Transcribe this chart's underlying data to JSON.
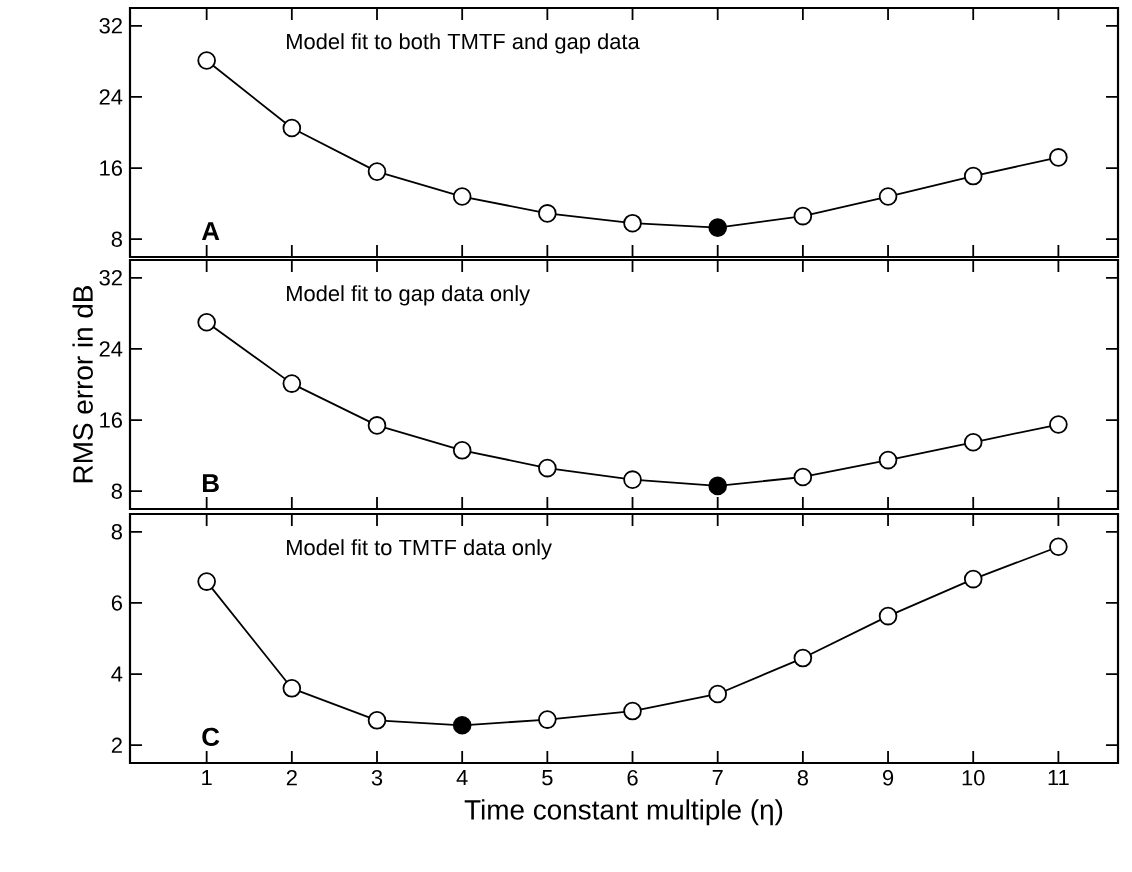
{
  "chart_data": [
    {
      "type": "line",
      "title": "Model fit to both TMTF and gap data",
      "annotations": [
        "A"
      ],
      "x": [
        1,
        2,
        3,
        4,
        5,
        6,
        7,
        8,
        9,
        10,
        11
      ],
      "series": [
        {
          "color": "#000000",
          "colors": [
            "#ffffff",
            "#ffffff",
            "#ffffff",
            "#ffffff",
            "#ffffff",
            "#ffffff",
            "#000000",
            "#ffffff",
            "#ffffff",
            "#ffffff",
            "#ffffff"
          ],
          "values": [
            28.1,
            20.5,
            15.6,
            12.8,
            10.9,
            9.8,
            9.3,
            10.6,
            12.8,
            15.1,
            17.2
          ]
        }
      ],
      "xlim": [
        0.1,
        11.7
      ],
      "ylim": [
        6,
        34
      ],
      "xticks": [
        1,
        2,
        3,
        4,
        5,
        6,
        7,
        8,
        9,
        10,
        11
      ],
      "yticks": [
        8,
        16,
        24,
        32
      ],
      "tick_labels": "y",
      "marker": "circle",
      "line_style": "solid"
    },
    {
      "type": "line",
      "title": "Model fit to gap data only",
      "annotations": [
        "B"
      ],
      "ylabel": "RMS error in dB",
      "x": [
        1,
        2,
        3,
        4,
        5,
        6,
        7,
        8,
        9,
        10,
        11
      ],
      "series": [
        {
          "color": "#000000",
          "colors": [
            "#ffffff",
            "#ffffff",
            "#ffffff",
            "#ffffff",
            "#ffffff",
            "#ffffff",
            "#000000",
            "#ffffff",
            "#ffffff",
            "#ffffff",
            "#ffffff"
          ],
          "values": [
            27.0,
            20.1,
            15.4,
            12.6,
            10.6,
            9.3,
            8.6,
            9.6,
            11.5,
            13.5,
            15.5
          ]
        }
      ],
      "xlim": [
        0.1,
        11.7
      ],
      "ylim": [
        6,
        34
      ],
      "xticks": [
        1,
        2,
        3,
        4,
        5,
        6,
        7,
        8,
        9,
        10,
        11
      ],
      "yticks": [
        8,
        16,
        24,
        32
      ],
      "tick_labels": "y",
      "marker": "circle",
      "line_style": "solid"
    },
    {
      "type": "line",
      "title": "Model fit to TMTF data only",
      "annotations": [
        "C"
      ],
      "xlabel": "Time constant multiple (η)",
      "x": [
        1,
        2,
        3,
        4,
        5,
        6,
        7,
        8,
        9,
        10,
        11
      ],
      "series": [
        {
          "color": "#000000",
          "colors": [
            "#ffffff",
            "#ffffff",
            "#ffffff",
            "#000000",
            "#ffffff",
            "#ffffff",
            "#ffffff",
            "#ffffff",
            "#ffffff",
            "#ffffff",
            "#ffffff"
          ],
          "values": [
            6.6,
            3.6,
            2.7,
            2.56,
            2.72,
            2.96,
            3.44,
            4.45,
            5.63,
            6.67,
            7.58
          ]
        }
      ],
      "xlim": [
        0.1,
        11.7
      ],
      "ylim": [
        1.5,
        8.5
      ],
      "xticks": [
        1,
        2,
        3,
        4,
        5,
        6,
        7,
        8,
        9,
        10,
        11
      ],
      "yticks": [
        2,
        4,
        6,
        8
      ],
      "marker": "circle",
      "line_style": "solid"
    }
  ]
}
